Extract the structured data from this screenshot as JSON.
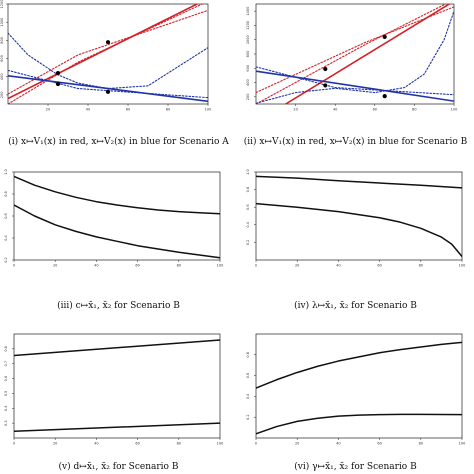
{
  "captions": [
    "(i) x↦V₁(x) in red, x↦V₂(x) in blue for Scenario A",
    "(ii) x↦V₁(x) in red, x↦V₂(x) in blue for Scenario B",
    "(iii) c↦x̄₁, x̄₂ for Scenario B",
    "(iv) λ↦x̄₁, x̄₂ for Scenario B",
    "(v) d↦x̄₁, x̄₂ for Scenario B",
    "(vi) γ↦x̄₁, x̄₂ for Scenario B"
  ],
  "colors": {
    "red": "#d42027",
    "blue": "#2233a8",
    "black": "#111111"
  },
  "chart_data": [
    {
      "type": "line",
      "xlim": [
        0,
        100
      ],
      "ylim": [
        100,
        1200
      ],
      "xticks": [
        "20",
        "40",
        "60",
        "80",
        "100"
      ],
      "yticks": [
        "200",
        "400",
        "600",
        "800",
        "1000",
        "1200"
      ],
      "series": [
        {
          "color": "red",
          "style": "solid",
          "x": [
            0,
            100
          ],
          "y": [
            160,
            1260
          ]
        },
        {
          "color": "red",
          "style": "dotted",
          "x": [
            0,
            35,
            100
          ],
          "y": [
            100,
            560,
            1230
          ]
        },
        {
          "color": "red",
          "style": "dotted",
          "x": [
            0,
            35,
            100
          ],
          "y": [
            210,
            640,
            1130
          ]
        },
        {
          "color": "blue",
          "style": "solid",
          "x": [
            0,
            100
          ],
          "y": [
            410,
            130
          ]
        },
        {
          "color": "blue",
          "style": "dotted",
          "x": [
            0,
            10,
            25,
            35,
            50,
            70,
            100
          ],
          "y": [
            880,
            640,
            420,
            330,
            270,
            300,
            720
          ]
        },
        {
          "color": "blue",
          "style": "dotted",
          "x": [
            0,
            35,
            100
          ],
          "y": [
            470,
            270,
            170
          ]
        }
      ],
      "points": [
        {
          "x": 25,
          "y": 440
        },
        {
          "x": 25,
          "y": 320
        },
        {
          "x": 50,
          "y": 780
        },
        {
          "x": 50,
          "y": 235
        }
      ]
    },
    {
      "type": "line",
      "xlim": [
        0,
        100
      ],
      "ylim": [
        100,
        1500
      ],
      "xticks": [
        "20",
        "40",
        "60",
        "80",
        "100"
      ],
      "yticks": [
        "200",
        "400",
        "600",
        "800",
        "1000",
        "1200",
        "1400"
      ],
      "series": [
        {
          "color": "red",
          "style": "solid",
          "x": [
            15,
            100
          ],
          "y": [
            100,
            1540
          ]
        },
        {
          "color": "red",
          "style": "dotted",
          "x": [
            0,
            55,
            100
          ],
          "y": [
            100,
            930,
            1560
          ]
        },
        {
          "color": "red",
          "style": "dotted",
          "x": [
            0,
            55,
            100
          ],
          "y": [
            260,
            960,
            1460
          ]
        },
        {
          "color": "blue",
          "style": "solid",
          "x": [
            0,
            100
          ],
          "y": [
            560,
            140
          ]
        },
        {
          "color": "blue",
          "style": "dotted",
          "x": [
            0,
            20,
            40,
            60,
            75,
            85,
            95,
            100
          ],
          "y": [
            110,
            260,
            320,
            260,
            330,
            520,
            1000,
            1400
          ]
        },
        {
          "color": "blue",
          "style": "dotted",
          "x": [
            0,
            40,
            100
          ],
          "y": [
            620,
            330,
            230
          ]
        }
      ],
      "points": [
        {
          "x": 35,
          "y": 590
        },
        {
          "x": 35,
          "y": 360
        },
        {
          "x": 65,
          "y": 1040
        },
        {
          "x": 65,
          "y": 210
        }
      ]
    },
    {
      "type": "line",
      "xlim": [
        0,
        100
      ],
      "ylim": [
        0.2,
        1.0
      ],
      "xticks": [
        "0",
        "20",
        "40",
        "60",
        "80",
        "100"
      ],
      "yticks": [
        "0.2",
        "0.4",
        "0.6",
        "0.8",
        "1.0"
      ],
      "series": [
        {
          "color": "black",
          "style": "solid",
          "x": [
            0,
            10,
            20,
            30,
            40,
            50,
            60,
            70,
            80,
            90,
            100
          ],
          "y": [
            0.96,
            0.88,
            0.82,
            0.77,
            0.73,
            0.7,
            0.675,
            0.655,
            0.64,
            0.63,
            0.62
          ]
        },
        {
          "color": "black",
          "style": "solid",
          "x": [
            0,
            10,
            20,
            30,
            40,
            50,
            60,
            70,
            80,
            90,
            100
          ],
          "y": [
            0.7,
            0.6,
            0.52,
            0.46,
            0.41,
            0.37,
            0.33,
            0.3,
            0.27,
            0.245,
            0.22
          ]
        }
      ]
    },
    {
      "type": "line",
      "xlim": [
        0,
        100
      ],
      "ylim": [
        0.0,
        1.0
      ],
      "xticks": [
        "0",
        "20",
        "40",
        "60",
        "80",
        "100"
      ],
      "yticks": [
        "0.2",
        "0.4",
        "0.6",
        "0.8",
        "1.0"
      ],
      "series": [
        {
          "color": "black",
          "style": "solid",
          "x": [
            0,
            20,
            40,
            60,
            80,
            100
          ],
          "y": [
            0.95,
            0.93,
            0.9,
            0.875,
            0.85,
            0.82
          ]
        },
        {
          "color": "black",
          "style": "solid",
          "x": [
            0,
            20,
            40,
            60,
            70,
            80,
            90,
            95,
            100
          ],
          "y": [
            0.64,
            0.6,
            0.55,
            0.48,
            0.43,
            0.36,
            0.26,
            0.18,
            0.04
          ]
        }
      ]
    },
    {
      "type": "line",
      "xlim": [
        0,
        100
      ],
      "ylim": [
        0.2,
        0.9
      ],
      "xticks": [
        "0",
        "20",
        "40",
        "60",
        "80",
        "100"
      ],
      "yticks": [
        "0.3",
        "0.4",
        "0.5",
        "0.6",
        "0.7",
        "0.8"
      ],
      "series": [
        {
          "color": "black",
          "style": "solid",
          "x": [
            0,
            100
          ],
          "y": [
            0.755,
            0.86
          ]
        },
        {
          "color": "black",
          "style": "solid",
          "x": [
            0,
            100
          ],
          "y": [
            0.245,
            0.3
          ]
        }
      ]
    },
    {
      "type": "line",
      "xlim": [
        0,
        100
      ],
      "ylim": [
        0.0,
        1.0
      ],
      "xticks": [
        "0",
        "20",
        "40",
        "60",
        "80",
        "100"
      ],
      "yticks": [
        "0.2",
        "0.4",
        "0.6",
        "0.8"
      ],
      "series": [
        {
          "color": "black",
          "style": "solid",
          "x": [
            0,
            10,
            20,
            30,
            40,
            50,
            60,
            70,
            80,
            90,
            100
          ],
          "y": [
            0.48,
            0.56,
            0.63,
            0.69,
            0.74,
            0.78,
            0.82,
            0.85,
            0.875,
            0.9,
            0.92
          ]
        },
        {
          "color": "black",
          "style": "solid",
          "x": [
            0,
            10,
            20,
            30,
            40,
            50,
            60,
            70,
            80,
            90,
            100
          ],
          "y": [
            0.04,
            0.11,
            0.16,
            0.19,
            0.21,
            0.22,
            0.225,
            0.227,
            0.227,
            0.226,
            0.225
          ]
        }
      ]
    }
  ]
}
